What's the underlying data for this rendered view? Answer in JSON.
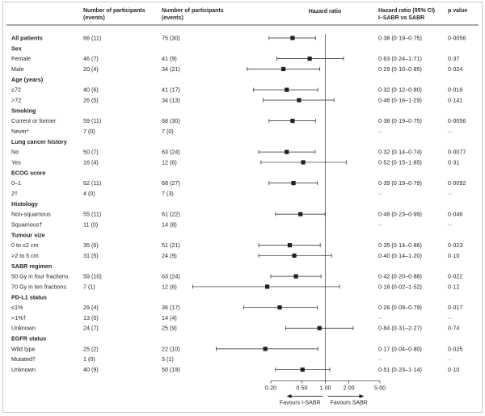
{
  "chart_data": {
    "type": "forest",
    "columns": {
      "subgroup": "",
      "i_sabr_n": "Number of participants (events)",
      "sabr_n": "Number of participants (events)",
      "plot": "Hazard ratio",
      "hr_ci": "Hazard ratio (95% CI) I–SABR vs SABR",
      "p": "p value"
    },
    "x_axis": {
      "scale": "log",
      "ticks": [
        0.2,
        0.5,
        1,
        2,
        5
      ],
      "tick_labels": [
        "0·20",
        "0·50",
        "1·00",
        "2·00",
        "5·00"
      ],
      "range": [
        0.2,
        5
      ],
      "reference_line": 1,
      "left_label": "Favours I-SABR",
      "right_label": "Favours SABR"
    },
    "rows": [
      {
        "kind": "data",
        "label": "All patients",
        "bold": true,
        "isabr": "66 (11)",
        "sabr": "75 (30)",
        "hr": 0.38,
        "lo": 0.19,
        "hi": 0.75,
        "hr_text": "0·38 (0·19–0·75)",
        "p": "0·0056"
      },
      {
        "kind": "group",
        "label": "Sex"
      },
      {
        "kind": "data",
        "label": "Female",
        "isabr": "46 (7)",
        "sabr": "41 (9)",
        "hr": 0.63,
        "lo": 0.24,
        "hi": 1.71,
        "hr_text": "0·63 (0·24–1·71)",
        "p": "0·37"
      },
      {
        "kind": "data",
        "label": "Male",
        "isabr": "20 (4)",
        "sabr": "34 (21)",
        "hr": 0.29,
        "lo": 0.1,
        "hi": 0.85,
        "hr_text": "0·29 (0·10–0·85)",
        "p": "0·024"
      },
      {
        "kind": "group",
        "label": "Age (years)"
      },
      {
        "kind": "data",
        "label": "≤72",
        "isabr": "40 (6)",
        "sabr": "41 (17)",
        "hr": 0.32,
        "lo": 0.12,
        "hi": 0.8,
        "hr_text": "0·32 (0·12–0·80)",
        "p": "0·016"
      },
      {
        "kind": "data",
        "label": ">72",
        "isabr": "26 (5)",
        "sabr": "34 (13)",
        "hr": 0.46,
        "lo": 0.16,
        "hi": 1.29,
        "hr_text": "0·46 (0·16–1·29)",
        "p": "0·141"
      },
      {
        "kind": "group",
        "label": "Smoking"
      },
      {
        "kind": "data",
        "label": "Current or former",
        "isabr": "59 (11)",
        "sabr": "68 (30)",
        "hr": 0.38,
        "lo": 0.19,
        "hi": 0.75,
        "hr_text": "0·38 (0·19–0·75)",
        "p": "0·0056"
      },
      {
        "kind": "data",
        "label": "Never*",
        "isabr": "7 (0)",
        "sabr": "7 (0)",
        "hr": null,
        "hr_text": "··",
        "p": "··"
      },
      {
        "kind": "group",
        "label": "Lung cancer history"
      },
      {
        "kind": "data",
        "label": "No",
        "isabr": "50 (7)",
        "sabr": "63 (24)",
        "hr": 0.32,
        "lo": 0.14,
        "hi": 0.74,
        "hr_text": "0·32 (0·14–0·74)",
        "p": "0·0077"
      },
      {
        "kind": "data",
        "label": "Yes",
        "isabr": "16 (4)",
        "sabr": "12 (6)",
        "hr": 0.52,
        "lo": 0.15,
        "hi": 1.85,
        "hr_text": "0·52 (0·15–1·85)",
        "p": "0·31"
      },
      {
        "kind": "group",
        "label": "ECOG score"
      },
      {
        "kind": "data",
        "label": "0–1",
        "isabr": "62 (11)",
        "sabr": "68 (27)",
        "hr": 0.39,
        "lo": 0.19,
        "hi": 0.79,
        "hr_text": "0·39 (0·19–0·79)",
        "p": "0·0092"
      },
      {
        "kind": "data",
        "label": "2†",
        "isabr": "4 (0)",
        "sabr": "7 (3)",
        "hr": null,
        "hr_text": "··",
        "p": "··"
      },
      {
        "kind": "group",
        "label": "Histology"
      },
      {
        "kind": "data",
        "label": "Non-squamous",
        "isabr": "55 (11)",
        "sabr": "61 (22)",
        "hr": 0.48,
        "lo": 0.23,
        "hi": 0.99,
        "hr_text": "0·48 (0·23–0·99)",
        "p": "0·046"
      },
      {
        "kind": "data",
        "label": "Squamous†",
        "isabr": "11 (0)",
        "sabr": "14 (8)",
        "hr": null,
        "hr_text": "··",
        "p": "··"
      },
      {
        "kind": "group",
        "label": "Tumour size"
      },
      {
        "kind": "data",
        "label": "0 to ≤2 cm",
        "isabr": "35 (6)",
        "sabr": "51 (21)",
        "hr": 0.35,
        "lo": 0.14,
        "hi": 0.86,
        "hr_text": "0·35 (0·14–0·86)",
        "p": "0·023"
      },
      {
        "kind": "data",
        "label": ">2 to 5 cm",
        "isabr": "31 (5)",
        "sabr": "24 (9)",
        "hr": 0.4,
        "lo": 0.14,
        "hi": 1.2,
        "hr_text": "0·40 (0·14–1·20)",
        "p": "0·10"
      },
      {
        "kind": "group",
        "label": "SABR regimen"
      },
      {
        "kind": "data",
        "label": "50 Gy in four fractions",
        "isabr": "59 (10)",
        "sabr": "63 (24)",
        "hr": 0.42,
        "lo": 0.2,
        "hi": 0.88,
        "hr_text": "0·42 (0·20–0·88)",
        "p": "0·022"
      },
      {
        "kind": "data",
        "label": "70 Gy in ten fractions",
        "isabr": "7 (1)",
        "sabr": "12 (6)",
        "hr": 0.18,
        "lo": 0.02,
        "hi": 1.52,
        "hr_text": "0·18 (0·02–1·52)",
        "p": "0·12"
      },
      {
        "kind": "group",
        "label": "PD-L1 status"
      },
      {
        "kind": "data",
        "label": "≤1%",
        "isabr": "29 (4)",
        "sabr": "36 (17)",
        "hr": 0.26,
        "lo": 0.09,
        "hi": 0.79,
        "hr_text": "0·26 (0·09–0·79)",
        "p": "0·017"
      },
      {
        "kind": "data",
        "label": ">1%†",
        "isabr": "13 (0)",
        "sabr": "14 (4)",
        "hr": null,
        "hr_text": "··",
        "p": "··"
      },
      {
        "kind": "data",
        "label": "Unknown",
        "isabr": "24 (7)",
        "sabr": "25 (9)",
        "hr": 0.84,
        "lo": 0.31,
        "hi": 2.27,
        "hr_text": "0·84 (0·31–2·27)",
        "p": "0·74"
      },
      {
        "kind": "group",
        "label": "EGFR status"
      },
      {
        "kind": "data",
        "label": "Wild type",
        "isabr": "25 (2)",
        "sabr": "22 (10)",
        "hr": 0.17,
        "lo": 0.04,
        "hi": 0.8,
        "hr_text": "0·17 (0·04–0·80)",
        "p": "0·025"
      },
      {
        "kind": "data",
        "label": "Mutated†",
        "isabr": "1 (0)",
        "sabr": "3 (1)",
        "hr": null,
        "hr_text": "··",
        "p": "··"
      },
      {
        "kind": "data",
        "label": "Unknown",
        "isabr": "40 (9)",
        "sabr": "50 (19)",
        "hr": 0.51,
        "lo": 0.23,
        "hi": 1.14,
        "hr_text": "0·51 (0·23–1·14)",
        "p": "0·10"
      }
    ]
  }
}
